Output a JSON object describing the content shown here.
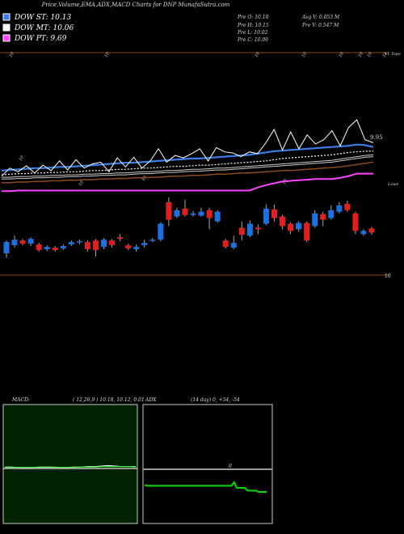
{
  "header": {
    "title": "Price,Volume,EMA,ADX,MACD Charts for DNP MunafaSutra.com",
    "dow_st": "DOW ST: 10.13",
    "dow_mt": "DOW MT: 10.06",
    "dow_pt": "DOW PT: 9.69",
    "prev_o": "Pre   O: 10.10",
    "prev_h": "Pre   H: 10.15",
    "prev_l": "Pre   L: 10.02",
    "prev_c": "Pre   C: 10.06",
    "avg_v": "Avg V: 0.053 M",
    "prev_v": "Pre   V: 0.547 M"
  },
  "colors": {
    "background": "#000000",
    "bull": "#1e6fe0",
    "bear": "#e02020",
    "dow_st": "#3a7de8",
    "dow_mt": "#ffffff",
    "dow_pt": "#ff44ff",
    "ema_orange": "#8a4a1c",
    "macd_bg": "#002200",
    "adx_line": "#00dd00"
  },
  "chart_data": [
    {
      "type": "line",
      "name": "price-ema-panel",
      "ylim": [
        9.35,
        11.65
      ],
      "y_labels": [
        {
          "text": "11",
          "value": 11.6
        },
        {
          "text": "9.95",
          "value": 9.95
        }
      ],
      "top_axis_labels": [
        "10",
        "10",
        "10",
        "10",
        "10",
        "10",
        "10",
        "11"
      ],
      "diag_labels": [
        "10",
        "10",
        "10",
        "10"
      ],
      "right_labels": {
        "top": "11 Tops",
        "bottom": "Lows"
      },
      "series": [
        {
          "name": "DOW ST: 10.13",
          "values": [
            9.74,
            9.75,
            9.76,
            9.77,
            9.78,
            9.78,
            9.79,
            9.8,
            9.8,
            9.81,
            9.82,
            9.83,
            9.84,
            9.85,
            9.86,
            9.87,
            9.87,
            9.88,
            9.89,
            9.9,
            9.91,
            9.92,
            9.93,
            9.94,
            9.94,
            9.95,
            9.96,
            9.97,
            9.98,
            9.99,
            10.0,
            10.02,
            10.04,
            10.06,
            10.07,
            10.08,
            10.09,
            10.1,
            10.11,
            10.12,
            10.13,
            10.14,
            10.15,
            10.17,
            10.16,
            10.13
          ]
        },
        {
          "name": "DOW MT: 10.06",
          "values": [
            9.67,
            9.68,
            9.69,
            9.69,
            9.7,
            9.7,
            9.71,
            9.71,
            9.72,
            9.72,
            9.73,
            9.74,
            9.74,
            9.75,
            9.76,
            9.76,
            9.77,
            9.78,
            9.78,
            9.79,
            9.8,
            9.81,
            9.81,
            9.82,
            9.83,
            9.83,
            9.84,
            9.85,
            9.86,
            9.87,
            9.88,
            9.89,
            9.9,
            9.92,
            9.94,
            9.95,
            9.96,
            9.97,
            9.98,
            9.99,
            10.0,
            10.02,
            10.04,
            10.05,
            10.06,
            10.06
          ]
        },
        {
          "name": "DOW PT: 9.69",
          "values": [
            9.4,
            9.4,
            9.41,
            9.41,
            9.41,
            9.41,
            9.41,
            9.41,
            9.41,
            9.41,
            9.41,
            9.41,
            9.41,
            9.41,
            9.41,
            9.41,
            9.41,
            9.41,
            9.41,
            9.41,
            9.41,
            9.41,
            9.41,
            9.41,
            9.41,
            9.41,
            9.41,
            9.41,
            9.41,
            9.41,
            9.41,
            9.46,
            9.5,
            9.53,
            9.56,
            9.57,
            9.58,
            9.59,
            9.6,
            9.6,
            9.6,
            9.62,
            9.65,
            9.69,
            9.69,
            9.69
          ]
        },
        {
          "name": "ema-orange",
          "values": [
            9.54,
            9.54,
            9.55,
            9.55,
            9.56,
            9.56,
            9.57,
            9.57,
            9.58,
            9.58,
            9.59,
            9.59,
            9.6,
            9.6,
            9.61,
            9.61,
            9.62,
            9.62,
            9.63,
            9.63,
            9.64,
            9.65,
            9.65,
            9.66,
            9.66,
            9.67,
            9.68,
            9.68,
            9.69,
            9.7,
            9.7,
            9.71,
            9.72,
            9.73,
            9.74,
            9.74,
            9.75,
            9.76,
            9.77,
            9.78,
            9.79,
            9.8,
            9.82,
            9.84,
            9.86,
            9.88
          ]
        },
        {
          "name": "ema-white-1",
          "values": [
            9.6,
            9.6,
            9.61,
            9.61,
            9.62,
            9.62,
            9.63,
            9.63,
            9.64,
            9.64,
            9.65,
            9.65,
            9.66,
            9.66,
            9.67,
            9.67,
            9.68,
            9.69,
            9.69,
            9.7,
            9.71,
            9.71,
            9.72,
            9.73,
            9.73,
            9.74,
            9.75,
            9.75,
            9.76,
            9.77,
            9.78,
            9.79,
            9.8,
            9.81,
            9.82,
            9.83,
            9.84,
            9.85,
            9.86,
            9.87,
            9.88,
            9.9,
            9.92,
            9.94,
            9.96,
            9.97
          ]
        },
        {
          "name": "ema-white-2",
          "values": [
            9.63,
            9.63,
            9.64,
            9.64,
            9.65,
            9.65,
            9.66,
            9.66,
            9.67,
            9.67,
            9.68,
            9.68,
            9.69,
            9.69,
            9.7,
            9.7,
            9.71,
            9.72,
            9.72,
            9.73,
            9.74,
            9.74,
            9.75,
            9.76,
            9.76,
            9.77,
            9.78,
            9.78,
            9.79,
            9.8,
            9.81,
            9.82,
            9.83,
            9.84,
            9.85,
            9.86,
            9.87,
            9.88,
            9.89,
            9.9,
            9.91,
            9.93,
            9.95,
            9.97,
            9.99,
            10.0
          ]
        },
        {
          "name": "close",
          "values": [
            9.65,
            9.78,
            9.72,
            9.82,
            9.7,
            9.83,
            9.74,
            9.9,
            9.75,
            9.92,
            9.78,
            9.85,
            9.88,
            9.72,
            9.95,
            9.8,
            9.96,
            9.78,
            9.9,
            10.1,
            9.88,
            9.99,
            9.95,
            10.02,
            10.1,
            9.9,
            10.12,
            10.05,
            10.03,
            9.97,
            10.05,
            10.02,
            10.2,
            10.42,
            10.08,
            10.38,
            10.1,
            10.33,
            10.18,
            10.25,
            10.4,
            10.15,
            10.45,
            10.58,
            10.25,
            10.2
          ]
        }
      ]
    },
    {
      "type": "candlestick",
      "name": "candle-panel",
      "ylim": [
        9.2,
        10.6
      ],
      "y_label": {
        "text": "10",
        "value": 10.0
      },
      "candles": [
        {
          "o": 9.88,
          "c": 10.02,
          "h": 10.04,
          "l": 9.82
        },
        {
          "o": 9.98,
          "c": 10.05,
          "h": 10.1,
          "l": 9.95
        },
        {
          "o": 10.04,
          "c": 10.0,
          "h": 10.06,
          "l": 9.98
        },
        {
          "o": 10.0,
          "c": 10.06,
          "h": 10.08,
          "l": 9.97
        },
        {
          "o": 9.99,
          "c": 9.92,
          "h": 10.01,
          "l": 9.9
        },
        {
          "o": 9.93,
          "c": 9.96,
          "h": 9.98,
          "l": 9.91
        },
        {
          "o": 9.95,
          "c": 9.92,
          "h": 9.97,
          "l": 9.9
        },
        {
          "o": 9.94,
          "c": 9.97,
          "h": 9.99,
          "l": 9.92
        },
        {
          "o": 9.99,
          "c": 10.02,
          "h": 10.04,
          "l": 9.97
        },
        {
          "o": 10.02,
          "c": 10.03,
          "h": 10.05,
          "l": 9.99
        },
        {
          "o": 10.02,
          "c": 9.93,
          "h": 10.04,
          "l": 9.9
        },
        {
          "o": 10.04,
          "c": 9.92,
          "h": 10.06,
          "l": 9.84
        },
        {
          "o": 9.96,
          "c": 10.05,
          "h": 10.07,
          "l": 9.93
        },
        {
          "o": 10.04,
          "c": 9.98,
          "h": 10.06,
          "l": 9.95
        },
        {
          "o": 10.08,
          "c": 10.06,
          "h": 10.12,
          "l": 10.03
        },
        {
          "o": 9.98,
          "c": 9.94,
          "h": 10.0,
          "l": 9.92
        },
        {
          "o": 9.93,
          "c": 9.96,
          "h": 9.99,
          "l": 9.9
        },
        {
          "o": 9.98,
          "c": 10.01,
          "h": 10.05,
          "l": 9.95
        },
        {
          "o": 10.04,
          "c": 10.05,
          "h": 10.07,
          "l": 10.02
        },
        {
          "o": 10.05,
          "c": 10.25,
          "h": 10.27,
          "l": 10.03
        },
        {
          "o": 10.52,
          "c": 10.3,
          "h": 10.58,
          "l": 10.22
        },
        {
          "o": 10.34,
          "c": 10.42,
          "h": 10.45,
          "l": 10.32
        },
        {
          "o": 10.44,
          "c": 10.36,
          "h": 10.55,
          "l": 10.34
        },
        {
          "o": 10.36,
          "c": 10.38,
          "h": 10.41,
          "l": 10.34
        },
        {
          "o": 10.35,
          "c": 10.4,
          "h": 10.45,
          "l": 10.34
        },
        {
          "o": 10.42,
          "c": 10.32,
          "h": 10.45,
          "l": 10.18
        },
        {
          "o": 10.28,
          "c": 10.4,
          "h": 10.42,
          "l": 10.26
        },
        {
          "o": 10.04,
          "c": 9.96,
          "h": 10.06,
          "l": 9.94
        },
        {
          "o": 9.95,
          "c": 10.01,
          "h": 10.1,
          "l": 9.93
        },
        {
          "o": 10.2,
          "c": 10.11,
          "h": 10.28,
          "l": 10.04
        },
        {
          "o": 10.1,
          "c": 10.25,
          "h": 10.29,
          "l": 10.08
        },
        {
          "o": 10.2,
          "c": 10.18,
          "h": 10.24,
          "l": 10.12
        },
        {
          "o": 10.25,
          "c": 10.44,
          "h": 10.49,
          "l": 10.23
        },
        {
          "o": 10.43,
          "c": 10.32,
          "h": 10.49,
          "l": 10.28
        },
        {
          "o": 10.34,
          "c": 10.22,
          "h": 10.36,
          "l": 10.18
        },
        {
          "o": 10.25,
          "c": 10.16,
          "h": 10.27,
          "l": 10.12
        },
        {
          "o": 10.18,
          "c": 10.26,
          "h": 10.28,
          "l": 10.15
        },
        {
          "o": 10.26,
          "c": 10.04,
          "h": 10.28,
          "l": 10.02
        },
        {
          "o": 10.22,
          "c": 10.38,
          "h": 10.42,
          "l": 10.2
        },
        {
          "o": 10.37,
          "c": 10.3,
          "h": 10.4,
          "l": 10.22
        },
        {
          "o": 10.32,
          "c": 10.42,
          "h": 10.48,
          "l": 10.3
        },
        {
          "o": 10.4,
          "c": 10.48,
          "h": 10.52,
          "l": 10.38
        },
        {
          "o": 10.5,
          "c": 10.42,
          "h": 10.54,
          "l": 10.4
        },
        {
          "o": 10.38,
          "c": 10.16,
          "h": 10.4,
          "l": 10.12
        },
        {
          "o": 10.12,
          "c": 10.16,
          "h": 10.18,
          "l": 10.1
        },
        {
          "o": 10.19,
          "c": 10.14,
          "h": 10.21,
          "l": 10.11
        }
      ]
    },
    {
      "type": "line",
      "name": "macd-panel",
      "label": "MACD:",
      "params": "( 12,26,9 ) 10.18, 10.12, 0.01",
      "ylim": [
        -1,
        1
      ],
      "series": [
        {
          "values": [
            0.03,
            0.03,
            0.02,
            0.02,
            0.02,
            0.03,
            0.03,
            0.03,
            0.02,
            0.02,
            0.03,
            0.03,
            0.04,
            0.04,
            0.05,
            0.06,
            0.05,
            0.04,
            0.04,
            0.04
          ]
        },
        {
          "values": [
            0.02,
            0.02,
            0.02,
            0.02,
            0.02,
            0.02,
            0.02,
            0.02,
            0.02,
            0.02,
            0.02,
            0.03,
            0.03,
            0.03,
            0.04,
            0.04,
            0.04,
            0.04,
            0.04,
            0.03
          ]
        }
      ]
    },
    {
      "type": "line",
      "name": "adx-panel",
      "label": "ADX",
      "params": "(14 day) 0, +54, -54",
      "mid_label": "0",
      "ylim": [
        -70,
        70
      ],
      "series": [
        {
          "values": [
            -23,
            -24,
            -24,
            -24,
            -24,
            -24,
            -24,
            -24,
            -24,
            -24,
            -24,
            -24,
            -24,
            -24,
            -24,
            -24,
            -24,
            -24,
            -24,
            -24,
            -24,
            -24,
            -24,
            -24,
            -24,
            -24,
            -24,
            -24,
            -24,
            -24,
            -24,
            -24,
            -24,
            -19,
            -27,
            -27,
            -27,
            -27,
            -31,
            -31,
            -31,
            -31,
            -33,
            -33,
            -33,
            -33
          ]
        }
      ]
    }
  ]
}
